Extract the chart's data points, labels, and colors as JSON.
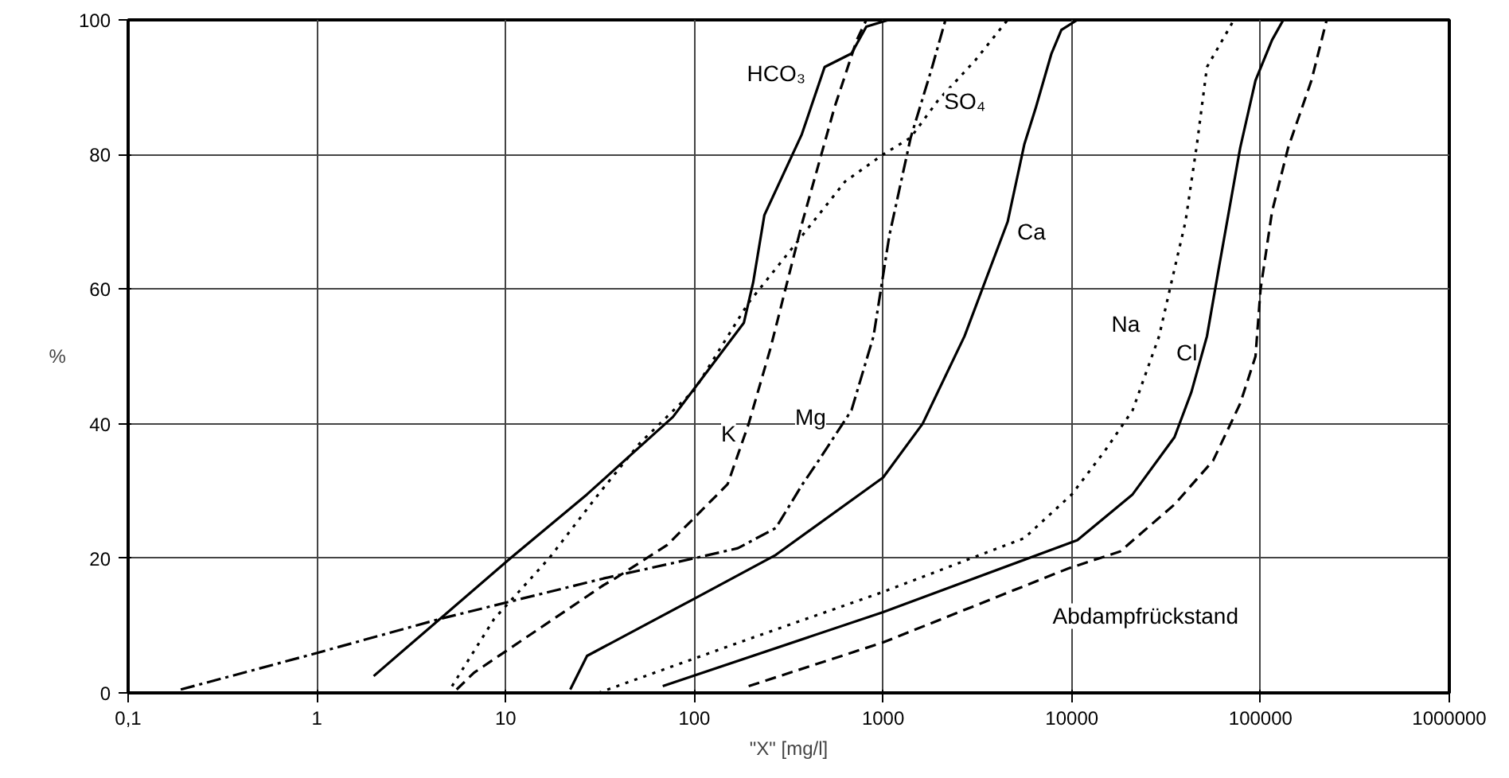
{
  "chart_data": {
    "type": "line",
    "xlabel": "\"X\" [mg/l]",
    "ylabel": "%",
    "log": "x",
    "grid": true,
    "marker": "none",
    "xlim": [
      0.1,
      1000000
    ],
    "ylim": [
      0,
      100
    ],
    "xticks": [
      {
        "value": 0.1,
        "label": "0,1"
      },
      1,
      10,
      100,
      1000,
      10000,
      100000,
      1000000
    ],
    "yticks": [
      0,
      20,
      40,
      60,
      80,
      100
    ],
    "series": [
      {
        "name": "HCO₃",
        "color": "#000000",
        "line_style": "solid",
        "x": [
          2,
          10.6,
          27,
          77,
          183,
          205,
          235,
          371,
          490,
          680,
          815,
          1070
        ],
        "values": [
          2.5,
          20,
          29.5,
          41,
          55,
          61,
          71,
          83,
          93,
          95,
          99,
          100
        ]
      },
      {
        "name": "K",
        "color": "#000000",
        "line_style": "dashed",
        "x": [
          5.5,
          6.8,
          33,
          38,
          72,
          150,
          194,
          252,
          374,
          553,
          725,
          815
        ],
        "values": [
          0.5,
          3,
          16,
          17,
          22,
          31,
          40,
          51,
          70,
          87,
          97,
          100
        ]
      },
      {
        "name": "SO₄",
        "color": "#000000",
        "line_style": "dotted",
        "x": [
          5.2,
          8.7,
          17,
          31,
          51,
          100,
          194,
          374,
          630,
          1000,
          1400,
          1950,
          3080,
          4570
        ],
        "values": [
          1,
          11,
          20,
          29.5,
          37,
          45,
          58,
          68,
          76,
          80,
          82.5,
          88,
          94,
          100
        ]
      },
      {
        "name": "Mg",
        "color": "#000000",
        "line_style": "dashdot",
        "x": [
          0.19,
          0.88,
          4.5,
          33,
          100,
          170,
          270,
          374,
          455,
          680,
          890,
          1080,
          1400,
          1820,
          2140
        ],
        "values": [
          0.5,
          5.5,
          11,
          17,
          20,
          21.5,
          24.5,
          31,
          34.5,
          42,
          53,
          68,
          82.5,
          93,
          100
        ]
      },
      {
        "name": "Ca",
        "color": "#000000",
        "line_style": "solid",
        "x": [
          22,
          27,
          100,
          270,
          1000,
          1620,
          2700,
          4570,
          5600,
          6450,
          7800,
          8800,
          10700
        ],
        "values": [
          0.5,
          5.5,
          14,
          20.5,
          32,
          40,
          53,
          70,
          81.5,
          87,
          95,
          98.5,
          100
        ]
      },
      {
        "name": "Na",
        "color": "#000000",
        "line_style": "dotted",
        "x": [
          31,
          194,
          1000,
          5600,
          10000,
          15000,
          21000,
          29000,
          35000,
          40000,
          46000,
          52000,
          69000,
          72000
        ],
        "values": [
          0,
          8,
          15,
          23,
          29.5,
          36,
          42,
          53,
          63,
          70,
          81.5,
          93,
          99,
          100
        ]
      },
      {
        "name": "Cl",
        "color": "#000000",
        "line_style": "solid",
        "x": [
          68,
          1000,
          10700,
          21000,
          35000,
          43000,
          52000,
          60000,
          78000,
          94000,
          115000,
          132000
        ],
        "values": [
          1,
          12,
          22.7,
          29.5,
          38,
          44.7,
          53,
          63,
          81,
          91,
          97,
          100
        ]
      },
      {
        "name": "Abdampfrückstand",
        "color": "#000000",
        "line_style": "dashed",
        "x": [
          194,
          1000,
          9600,
          18000,
          35000,
          56000,
          78000,
          94000,
          100000,
          115000,
          140000,
          186000,
          224000
        ],
        "values": [
          1,
          7.5,
          18.5,
          21,
          28,
          34.5,
          43,
          50,
          60,
          71.5,
          81,
          91,
          100
        ]
      }
    ]
  }
}
